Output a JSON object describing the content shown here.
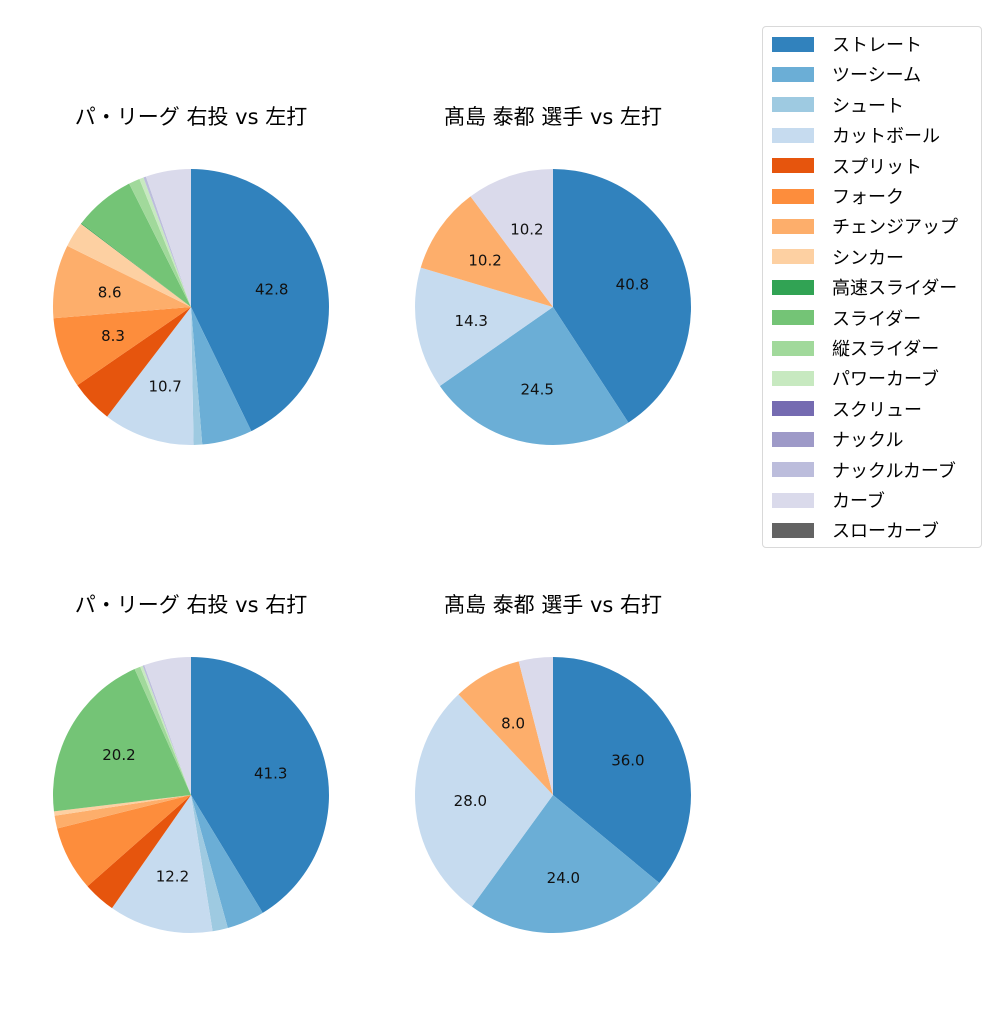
{
  "legend": {
    "items": [
      {
        "label": "ストレート",
        "color": "#3182bd"
      },
      {
        "label": "ツーシーム",
        "color": "#6baed6"
      },
      {
        "label": "シュート",
        "color": "#9ecae1"
      },
      {
        "label": "カットボール",
        "color": "#c6dbef"
      },
      {
        "label": "スプリット",
        "color": "#e6550d"
      },
      {
        "label": "フォーク",
        "color": "#fd8d3c"
      },
      {
        "label": "チェンジアップ",
        "color": "#fdae6b"
      },
      {
        "label": "シンカー",
        "color": "#fdd0a2"
      },
      {
        "label": "高速スライダー",
        "color": "#31a354"
      },
      {
        "label": "スライダー",
        "color": "#74c476"
      },
      {
        "label": "縦スライダー",
        "color": "#a1d99b"
      },
      {
        "label": "パワーカーブ",
        "color": "#c7e9c0"
      },
      {
        "label": "スクリュー",
        "color": "#756bb1"
      },
      {
        "label": "ナックル",
        "color": "#9e9ac8"
      },
      {
        "label": "ナックルカーブ",
        "color": "#bcbddc"
      },
      {
        "label": "カーブ",
        "color": "#dadaeb"
      },
      {
        "label": "スローカーブ",
        "color": "#636363"
      }
    ]
  },
  "panels": [
    {
      "title": "パ・リーグ 右投 vs 左打"
    },
    {
      "title": "髙島 泰都 選手 vs 左打"
    },
    {
      "title": "パ・リーグ 右投 vs 右打"
    },
    {
      "title": "髙島 泰都 選手 vs 右打"
    }
  ],
  "chart_data": [
    {
      "type": "pie",
      "title": "パ・リーグ 右投 vs 左打",
      "start_angle": 90,
      "direction": "clockwise",
      "label_threshold": 8,
      "categories": [
        "ストレート",
        "ツーシーム",
        "シュート",
        "カットボール",
        "スプリット",
        "フォーク",
        "チェンジアップ",
        "シンカー",
        "高速スライダー",
        "スライダー",
        "縦スライダー",
        "パワーカーブ",
        "ナックルカーブ",
        "カーブ"
      ],
      "values": [
        42.8,
        5.9,
        1.0,
        10.7,
        5.0,
        8.3,
        8.6,
        3.0,
        0.1,
        7.2,
        1.3,
        0.5,
        0.3,
        5.3
      ],
      "labels_shown": [
        "42.8",
        "10.7",
        "8.3",
        "8.6"
      ]
    },
    {
      "type": "pie",
      "title": "髙島 泰都 選手 vs 左打",
      "start_angle": 90,
      "direction": "clockwise",
      "label_threshold": 8,
      "categories": [
        "ストレート",
        "ツーシーム",
        "カットボール",
        "チェンジアップ",
        "カーブ"
      ],
      "values": [
        40.8,
        24.5,
        14.3,
        10.2,
        10.2
      ],
      "labels_shown": [
        "40.8",
        "24.5",
        "14.3",
        "10.2",
        "10.2"
      ]
    },
    {
      "type": "pie",
      "title": "パ・リーグ 右投 vs 右打",
      "start_angle": 90,
      "direction": "clockwise",
      "label_threshold": 8,
      "categories": [
        "ストレート",
        "ツーシーム",
        "シュート",
        "カットボール",
        "スプリット",
        "フォーク",
        "チェンジアップ",
        "シンカー",
        "スライダー",
        "縦スライダー",
        "パワーカーブ",
        "ナックルカーブ",
        "カーブ"
      ],
      "values": [
        41.3,
        4.4,
        1.8,
        12.2,
        3.8,
        7.6,
        1.5,
        0.5,
        20.2,
        0.7,
        0.3,
        0.2,
        5.5
      ],
      "labels_shown": [
        "41.3",
        "12.2",
        "20.2"
      ]
    },
    {
      "type": "pie",
      "title": "髙島 泰都 選手 vs 右打",
      "start_angle": 90,
      "direction": "clockwise",
      "label_threshold": 8,
      "categories": [
        "ストレート",
        "ツーシーム",
        "カットボール",
        "チェンジアップ",
        "カーブ"
      ],
      "values": [
        36.0,
        24.0,
        28.0,
        8.0,
        4.0
      ],
      "labels_shown": [
        "36.0",
        "24.0",
        "28.0",
        "8.0"
      ]
    }
  ]
}
